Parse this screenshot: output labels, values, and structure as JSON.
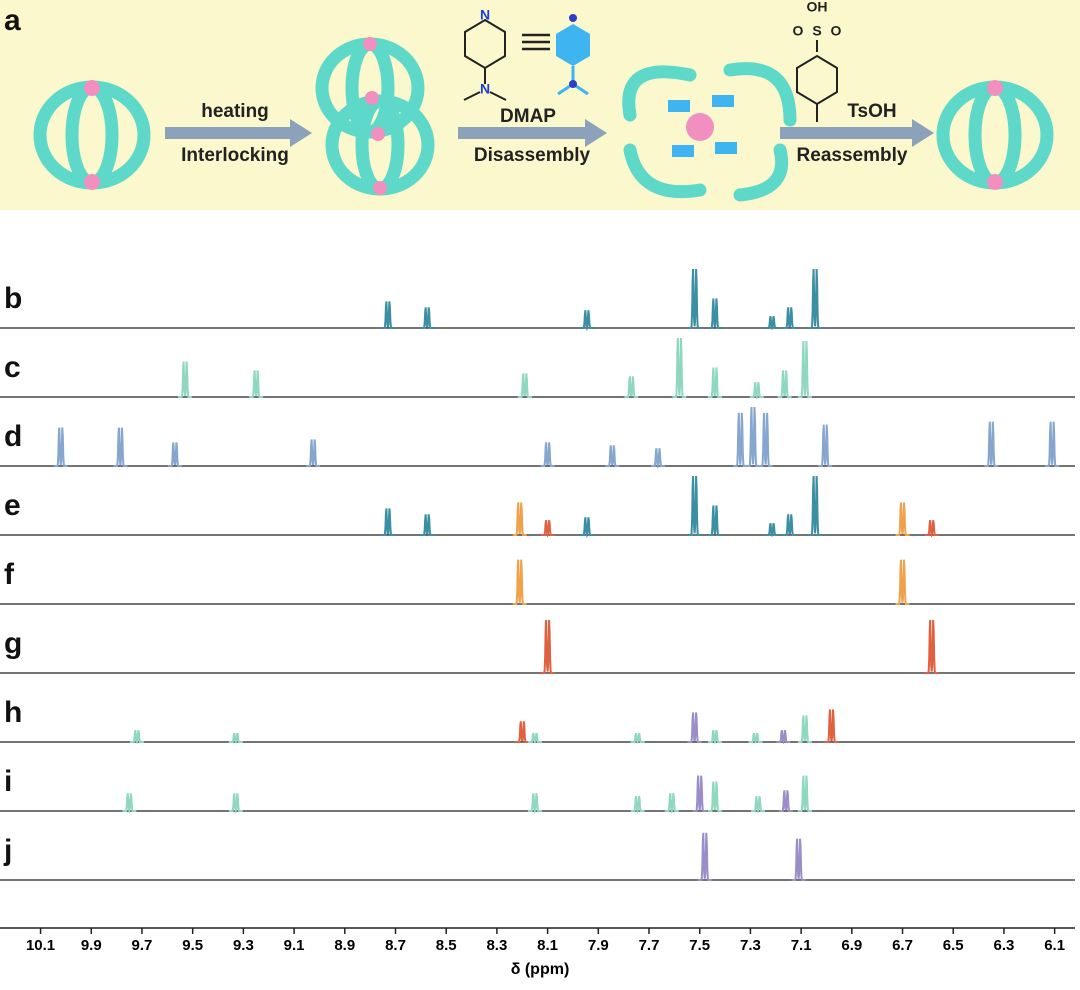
{
  "scheme": {
    "label": "a",
    "step1": {
      "top": "heating",
      "bottom": "Interlocking"
    },
    "step2": {
      "top": "DMAP",
      "bottom": "Disassembly"
    },
    "step3": {
      "top": "TsOH",
      "bottom": "Reassembly"
    },
    "dmap_atoms": [
      "N",
      "N"
    ],
    "tsoh_atoms": [
      "OH",
      "O",
      "S",
      "O"
    ]
  },
  "chart_data": {
    "type": "nmr",
    "xlabel": "δ (ppm)",
    "xlim": [
      10.26,
      6.0
    ],
    "xticks": [
      10.1,
      9.9,
      9.7,
      9.5,
      9.3,
      9.1,
      8.9,
      8.7,
      8.5,
      8.3,
      8.1,
      7.9,
      7.7,
      7.5,
      7.3,
      7.1,
      6.9,
      6.7,
      6.5,
      6.3,
      6.1
    ],
    "series": [
      {
        "name": "b",
        "color": "#3b8fa3",
        "peaks": [
          {
            "x": 8.73,
            "i": 0.45
          },
          {
            "x": 8.575,
            "i": 0.35
          },
          {
            "x": 7.945,
            "i": 0.3
          },
          {
            "x": 7.52,
            "i": 1.0
          },
          {
            "x": 7.44,
            "i": 0.5
          },
          {
            "x": 7.215,
            "i": 0.2
          },
          {
            "x": 7.145,
            "i": 0.35
          },
          {
            "x": 7.045,
            "i": 1.0
          }
        ]
      },
      {
        "name": "c",
        "color": "#8fd8be",
        "peaks": [
          {
            "x": 9.53,
            "i": 0.6
          },
          {
            "x": 9.25,
            "i": 0.45
          },
          {
            "x": 8.19,
            "i": 0.4
          },
          {
            "x": 7.77,
            "i": 0.35
          },
          {
            "x": 7.58,
            "i": 1.0
          },
          {
            "x": 7.44,
            "i": 0.5
          },
          {
            "x": 7.275,
            "i": 0.25
          },
          {
            "x": 7.165,
            "i": 0.45
          },
          {
            "x": 7.085,
            "i": 0.95
          }
        ]
      },
      {
        "name": "d",
        "color": "#86a6d0",
        "peaks": [
          {
            "x": 10.02,
            "i": 0.65
          },
          {
            "x": 9.785,
            "i": 0.65
          },
          {
            "x": 9.57,
            "i": 0.4
          },
          {
            "x": 9.025,
            "i": 0.45
          },
          {
            "x": 8.1,
            "i": 0.4
          },
          {
            "x": 7.845,
            "i": 0.35
          },
          {
            "x": 7.665,
            "i": 0.3
          },
          {
            "x": 7.34,
            "i": 0.9
          },
          {
            "x": 7.29,
            "i": 1.0
          },
          {
            "x": 7.24,
            "i": 0.9
          },
          {
            "x": 7.005,
            "i": 0.7
          },
          {
            "x": 6.35,
            "i": 0.75
          },
          {
            "x": 6.11,
            "i": 0.75
          }
        ]
      },
      {
        "name": "e",
        "color": "#3b8fa3",
        "peaks": [
          {
            "x": 8.73,
            "i": 0.45
          },
          {
            "x": 8.575,
            "i": 0.35
          },
          {
            "x": 8.21,
            "i": 0.55,
            "color": "#f0a24a"
          },
          {
            "x": 8.1,
            "i": 0.25,
            "color": "#e0603f"
          },
          {
            "x": 7.945,
            "i": 0.3
          },
          {
            "x": 7.52,
            "i": 1.0
          },
          {
            "x": 7.44,
            "i": 0.5
          },
          {
            "x": 7.215,
            "i": 0.2
          },
          {
            "x": 7.145,
            "i": 0.35
          },
          {
            "x": 7.045,
            "i": 1.0
          },
          {
            "x": 6.7,
            "i": 0.55,
            "color": "#f0a24a"
          },
          {
            "x": 6.585,
            "i": 0.25,
            "color": "#e0603f"
          }
        ]
      },
      {
        "name": "f",
        "color": "#f0a24a",
        "peaks": [
          {
            "x": 8.21,
            "i": 0.75
          },
          {
            "x": 6.7,
            "i": 0.75
          }
        ]
      },
      {
        "name": "g",
        "color": "#e0603f",
        "peaks": [
          {
            "x": 8.1,
            "i": 0.9
          },
          {
            "x": 6.585,
            "i": 0.9
          }
        ]
      },
      {
        "name": "h",
        "color": "#8fd8be",
        "peaks": [
          {
            "x": 9.72,
            "i": 0.2
          },
          {
            "x": 9.33,
            "i": 0.15
          },
          {
            "x": 8.2,
            "i": 0.35,
            "color": "#e0603f"
          },
          {
            "x": 8.15,
            "i": 0.15
          },
          {
            "x": 7.745,
            "i": 0.15
          },
          {
            "x": 7.52,
            "i": 0.5,
            "color": "#9b8dc9"
          },
          {
            "x": 7.44,
            "i": 0.2
          },
          {
            "x": 7.28,
            "i": 0.15
          },
          {
            "x": 7.17,
            "i": 0.2,
            "color": "#9b8dc9"
          },
          {
            "x": 7.085,
            "i": 0.45
          },
          {
            "x": 6.98,
            "i": 0.55,
            "color": "#e0603f"
          }
        ]
      },
      {
        "name": "i",
        "color": "#8fd8be",
        "peaks": [
          {
            "x": 9.75,
            "i": 0.3
          },
          {
            "x": 9.33,
            "i": 0.3
          },
          {
            "x": 8.15,
            "i": 0.3
          },
          {
            "x": 7.745,
            "i": 0.25
          },
          {
            "x": 7.61,
            "i": 0.3
          },
          {
            "x": 7.5,
            "i": 0.6,
            "color": "#9b8dc9"
          },
          {
            "x": 7.44,
            "i": 0.5
          },
          {
            "x": 7.27,
            "i": 0.25
          },
          {
            "x": 7.16,
            "i": 0.35,
            "color": "#9b8dc9"
          },
          {
            "x": 7.085,
            "i": 0.6
          }
        ]
      },
      {
        "name": "j",
        "color": "#9b8dc9",
        "peaks": [
          {
            "x": 7.48,
            "i": 0.8
          },
          {
            "x": 7.11,
            "i": 0.7
          }
        ]
      }
    ]
  }
}
